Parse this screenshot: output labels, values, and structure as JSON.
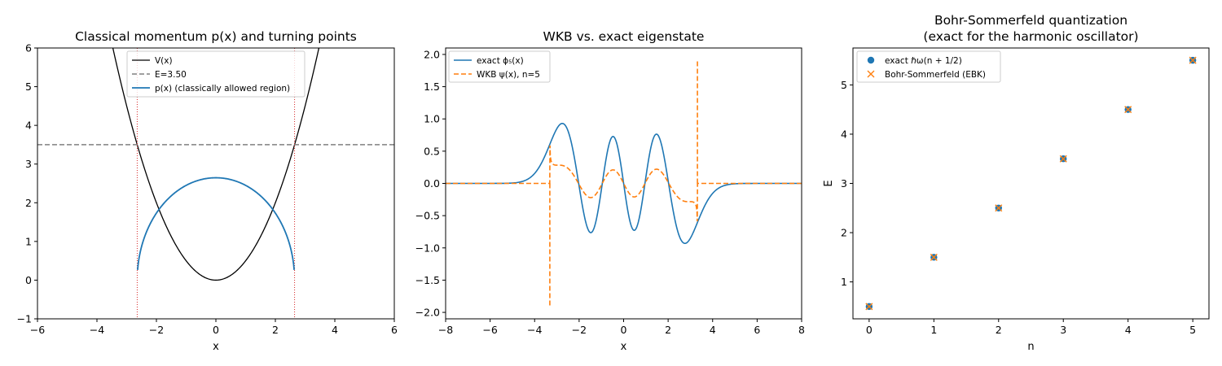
{
  "chart_data": [
    {
      "type": "line",
      "title": "Classical momentum p(x) and turning points",
      "xlabel": "x",
      "ylabel": "",
      "xlim": [
        -6,
        6
      ],
      "ylim": [
        -1,
        6
      ],
      "xticks": [
        -6,
        -4,
        -2,
        0,
        2,
        4,
        6
      ],
      "yticks": [
        -1,
        0,
        1,
        2,
        3,
        4,
        5,
        6
      ],
      "energy": 3.5,
      "turning_points": [
        -2.6458,
        2.6458
      ],
      "legend_position": "upper center",
      "series": [
        {
          "name": "V(x)",
          "function": "V(x) = x^2/2",
          "color": "#000000",
          "style": "solid"
        },
        {
          "name": "E=3.50",
          "function": "E = 3.5",
          "color": "#808080",
          "style": "dashed"
        },
        {
          "name": "p(x) (classically allowed region)",
          "function": "p(x) = sqrt(2(E - V(x)))",
          "color": "#1f77b4",
          "style": "solid"
        }
      ],
      "vlines": {
        "x": [
          -2.6458,
          2.6458
        ],
        "color": "#d62728",
        "style": "dotted"
      }
    },
    {
      "type": "line",
      "title": "WKB vs. exact eigenstate",
      "xlabel": "x",
      "ylabel": "",
      "xlim": [
        -8,
        8
      ],
      "ylim": [
        -2.1,
        2.1
      ],
      "xticks": [
        -8,
        -6,
        -4,
        -2,
        0,
        2,
        4,
        6,
        8
      ],
      "yticks": [
        -2.0,
        -1.5,
        -1.0,
        -0.5,
        0.0,
        0.5,
        1.0,
        1.5,
        2.0
      ],
      "n": 5,
      "legend_position": "upper left",
      "series": [
        {
          "name": "exact ϕ₅(x)",
          "function": "harmonic oscillator eigenstate n=5",
          "color": "#1f77b4",
          "style": "solid"
        },
        {
          "name": "WKB ψ(x), n=5",
          "function": "WKB approximation, zero outside turning points",
          "color": "#ff7f0e",
          "style": "dashed"
        }
      ]
    },
    {
      "type": "scatter",
      "title": "Bohr-Sommerfeld quantization",
      "subtitle": "(exact for the harmonic oscillator)",
      "xlabel": "n",
      "ylabel": "E",
      "xlim": [
        -0.25,
        5.25
      ],
      "ylim": [
        0.25,
        5.75
      ],
      "xticks": [
        0,
        1,
        2,
        3,
        4,
        5
      ],
      "yticks": [
        1,
        2,
        3,
        4,
        5
      ],
      "legend_position": "upper left",
      "series": [
        {
          "name": "exact ℏω(n + 1/2)",
          "marker": "circle",
          "color": "#1f77b4",
          "x": [
            0,
            1,
            2,
            3,
            4,
            5
          ],
          "y": [
            0.5,
            1.5,
            2.5,
            3.5,
            4.5,
            5.5
          ]
        },
        {
          "name": "Bohr-Sommerfeld (EBK)",
          "marker": "x",
          "color": "#ff7f0e",
          "x": [
            0,
            1,
            2,
            3,
            4,
            5
          ],
          "y": [
            0.5,
            1.5,
            2.5,
            3.5,
            4.5,
            5.5
          ]
        }
      ]
    }
  ]
}
